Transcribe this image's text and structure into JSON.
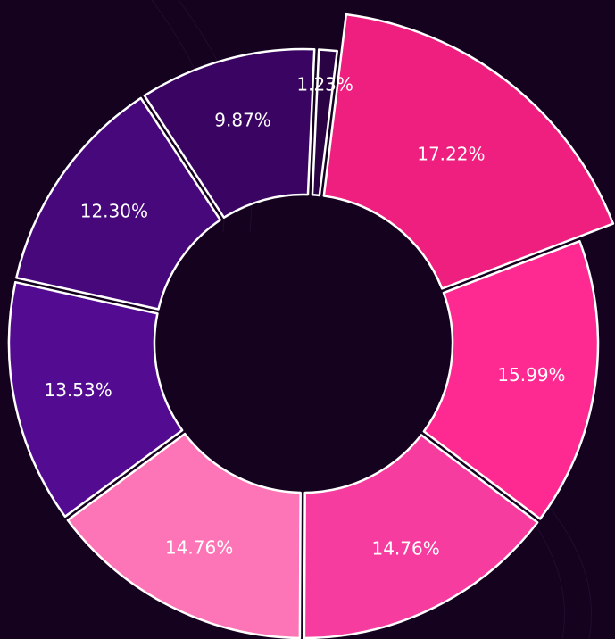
{
  "chart_data": {
    "type": "donut",
    "values": [
      17.22,
      15.99,
      14.76,
      14.76,
      13.53,
      12.3,
      9.87,
      1.23
    ],
    "value_labels": [
      "17.22%",
      "15.99%",
      "14.76%",
      "14.76%",
      "13.53%",
      "12.30%",
      "9.87%",
      "1.23%"
    ],
    "colors": [
      "#ee1f7e",
      "#fe2a91",
      "#f63c9f",
      "#fd75b6",
      "#530b92",
      "#46087a",
      "#3a0562",
      "#2a0345"
    ]
  }
}
